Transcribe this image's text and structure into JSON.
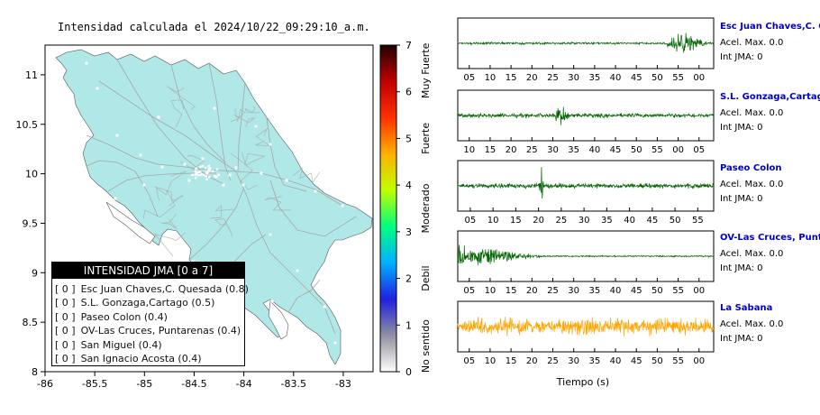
{
  "map": {
    "title": "Intensidad calculada el 2024/10/22_09:29:10_a.m.",
    "x_ticks": [
      "-86",
      "-85.5",
      "-85",
      "-84.5",
      "-84",
      "-83.5",
      "-83"
    ],
    "y_ticks": [
      "8",
      "8.5",
      "9",
      "9.5",
      "10",
      "10.5",
      "11"
    ],
    "xlim": [
      -86,
      -82.7
    ],
    "ylim": [
      8,
      11.3
    ],
    "land_color": "#b0e8e8",
    "road_color": "#a6a6a6"
  },
  "colorbar": {
    "ticks": [
      "0",
      "1",
      "2",
      "3",
      "4",
      "5",
      "6",
      "7"
    ],
    "range": [
      0,
      7
    ],
    "labels": [
      "No sentido",
      "Debil",
      "Moderado",
      "Fuerte",
      "Muy Fuerte"
    ],
    "colors": [
      "#ffffff",
      "#9090a0",
      "#2020e0",
      "#00b0ff",
      "#00ff80",
      "#c0ff00",
      "#ffb000",
      "#ff3000",
      "#c00000",
      "#200000"
    ]
  },
  "legend": {
    "title": "INTENSIDAD JMA [0 a 7]",
    "items": [
      {
        "level": "[ 0 ]",
        "name": "Esc Juan Chaves,C. Quesada (0.8)"
      },
      {
        "level": "[ 0 ]",
        "name": "S.L. Gonzaga,Cartago (0.5)"
      },
      {
        "level": "[ 0 ]",
        "name": "Paseo Colon (0.4)"
      },
      {
        "level": "[ 0 ]",
        "name": "OV-Las Cruces, Puntarenas (0.4)"
      },
      {
        "level": "[ 0 ]",
        "name": "San Miguel (0.4)"
      },
      {
        "level": "[ 0 ]",
        "name": "San Ignacio Acosta (0.4)"
      }
    ]
  },
  "waveforms": {
    "xlabel": "Tiempo (s)",
    "panels": [
      {
        "station": "Esc Juan Chaves,C. Quesada",
        "acel": "Acel. Max. 0.0",
        "int": "Int JMA: 0",
        "color": "#006400",
        "ticks": [
          "05",
          "10",
          "15",
          "20",
          "25",
          "30",
          "35",
          "40",
          "45",
          "50",
          "55",
          "00"
        ],
        "burst": [
          0.82,
          1.0
        ],
        "amp": 0.55,
        "noise": 0.06
      },
      {
        "station": "S.L. Gonzaga,Cartago",
        "acel": "Acel. Max. 0.0",
        "int": "Int JMA: 0",
        "color": "#006400",
        "ticks": [
          "10",
          "15",
          "20",
          "25",
          "30",
          "35",
          "40",
          "45",
          "50",
          "55",
          "00",
          "05"
        ],
        "burst": [
          0.38,
          0.45
        ],
        "amp": 0.45,
        "noise": 0.12
      },
      {
        "station": "Paseo Colon",
        "acel": "Acel. Max. 0.0",
        "int": "Int JMA: 0",
        "color": "#006400",
        "ticks": [
          "05",
          "10",
          "15",
          "20",
          "25",
          "30",
          "35",
          "40",
          "45",
          "50",
          "55"
        ],
        "burst": [
          0.32,
          0.34
        ],
        "amp": 0.8,
        "noise": 0.14
      },
      {
        "station": "OV-Las Cruces, Puntarenas",
        "acel": "Acel. Max. 0.0",
        "int": "Int JMA: 0",
        "color": "#006400",
        "ticks": [
          "05",
          "10",
          "15",
          "20",
          "25",
          "30",
          "35",
          "40",
          "45",
          "50",
          "55",
          "00"
        ],
        "burst": [
          0.0,
          0.35
        ],
        "amp": 0.6,
        "noise": 0.04
      },
      {
        "station": "La Sabana",
        "acel": "Acel. Max. 0.0",
        "int": "Int JMA: 0",
        "color": "#ffa500",
        "ticks": [
          "05",
          "10",
          "15",
          "20",
          "25",
          "30",
          "35",
          "40",
          "45",
          "50",
          "55",
          "00"
        ],
        "burst": [
          0.0,
          1.0
        ],
        "amp": 0.5,
        "noise": 0.35
      }
    ]
  }
}
